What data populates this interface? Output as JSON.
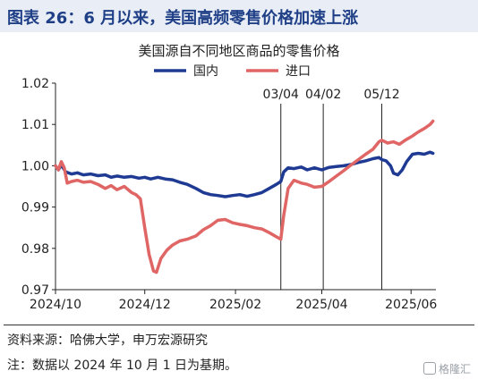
{
  "header": {
    "title": "图表 26：6 月以来，美国高频零售价格加速上涨"
  },
  "footer": {
    "source": "资料来源：哈佛大学，申万宏源研究",
    "note": "注：数据以 2024 年 10 月 1 日为基期。"
  },
  "watermark": {
    "text": "格隆汇"
  },
  "colors": {
    "domestic": "#1f3a93",
    "imported": "#e06666",
    "header_bg": "#e9eef6",
    "header_text": "#1f3f87"
  },
  "chart_data": {
    "type": "line",
    "title": "美国源自不同地区商品的零售价格",
    "xlabel": "",
    "ylabel": "",
    "xlim": [
      "2024-10-01",
      "2025-06-18"
    ],
    "ylim": [
      0.97,
      1.02
    ],
    "yticks": [
      0.97,
      0.98,
      0.99,
      1.0,
      1.01,
      1.02
    ],
    "ytick_labels": [
      "0.97",
      "0.98",
      "0.99",
      "1.00",
      "1.01",
      "1.02"
    ],
    "xticks": [
      "2024-10-01",
      "2024-12-01",
      "2025-02-01",
      "2025-04-01",
      "2025-06-01"
    ],
    "xtick_labels": [
      "2024/10",
      "2024/12",
      "2025/02",
      "2025/04",
      "2025/06"
    ],
    "legend": {
      "placement": "top-center"
    },
    "annotations": [
      {
        "date": "2025-03-04",
        "label": "03/04"
      },
      {
        "date": "2025-04-02",
        "label": "04/02"
      },
      {
        "date": "2025-05-12",
        "label": "05/12"
      }
    ],
    "series": [
      {
        "name": "国内",
        "color": "#1f3a93",
        "points": [
          [
            "2024-10-01",
            1.0
          ],
          [
            "2024-10-03",
            0.999
          ],
          [
            "2024-10-05",
            1.0002
          ],
          [
            "2024-10-08",
            0.9985
          ],
          [
            "2024-10-12",
            0.998
          ],
          [
            "2024-10-16",
            0.9983
          ],
          [
            "2024-10-20",
            0.9978
          ],
          [
            "2024-10-25",
            0.998
          ],
          [
            "2024-10-30",
            0.9976
          ],
          [
            "2024-11-04",
            0.9978
          ],
          [
            "2024-11-08",
            0.9972
          ],
          [
            "2024-11-12",
            0.9975
          ],
          [
            "2024-11-17",
            0.9972
          ],
          [
            "2024-11-22",
            0.9974
          ],
          [
            "2024-11-27",
            0.997
          ],
          [
            "2024-12-01",
            0.9972
          ],
          [
            "2024-12-05",
            0.9968
          ],
          [
            "2024-12-10",
            0.9972
          ],
          [
            "2024-12-15",
            0.9968
          ],
          [
            "2024-12-20",
            0.9966
          ],
          [
            "2024-12-25",
            0.996
          ],
          [
            "2024-12-30",
            0.9955
          ],
          [
            "2025-01-05",
            0.9945
          ],
          [
            "2025-01-10",
            0.9935
          ],
          [
            "2025-01-15",
            0.993
          ],
          [
            "2025-01-20",
            0.9928
          ],
          [
            "2025-01-25",
            0.9925
          ],
          [
            "2025-01-30",
            0.9928
          ],
          [
            "2025-02-04",
            0.993
          ],
          [
            "2025-02-09",
            0.9926
          ],
          [
            "2025-02-14",
            0.993
          ],
          [
            "2025-02-19",
            0.9935
          ],
          [
            "2025-02-24",
            0.9945
          ],
          [
            "2025-03-01",
            0.9955
          ],
          [
            "2025-03-04",
            0.9962
          ],
          [
            "2025-03-06",
            0.9985
          ],
          [
            "2025-03-09",
            0.9995
          ],
          [
            "2025-03-13",
            0.9993
          ],
          [
            "2025-03-18",
            0.9997
          ],
          [
            "2025-03-22",
            0.999
          ],
          [
            "2025-03-27",
            0.9995
          ],
          [
            "2025-04-01",
            0.999
          ],
          [
            "2025-04-06",
            0.9996
          ],
          [
            "2025-04-11",
            0.9998
          ],
          [
            "2025-04-16",
            1.0
          ],
          [
            "2025-04-21",
            1.0003
          ],
          [
            "2025-04-26",
            1.0008
          ],
          [
            "2025-05-01",
            1.0012
          ],
          [
            "2025-05-06",
            1.0017
          ],
          [
            "2025-05-10",
            1.002
          ],
          [
            "2025-05-12",
            1.0015
          ],
          [
            "2025-05-15",
            1.0012
          ],
          [
            "2025-05-18",
            1.0
          ],
          [
            "2025-05-20",
            0.9982
          ],
          [
            "2025-05-23",
            0.9978
          ],
          [
            "2025-05-26",
            0.999
          ],
          [
            "2025-05-29",
            1.001
          ],
          [
            "2025-06-02",
            1.0028
          ],
          [
            "2025-06-06",
            1.003
          ],
          [
            "2025-06-10",
            1.0028
          ],
          [
            "2025-06-14",
            1.0033
          ],
          [
            "2025-06-16",
            1.003
          ]
        ]
      },
      {
        "name": "进口",
        "color": "#e06666",
        "points": [
          [
            "2024-10-01",
            1.0
          ],
          [
            "2024-10-03",
            0.999
          ],
          [
            "2024-10-05",
            1.001
          ],
          [
            "2024-10-07",
            0.9995
          ],
          [
            "2024-10-09",
            0.9958
          ],
          [
            "2024-10-12",
            0.9962
          ],
          [
            "2024-10-16",
            0.9965
          ],
          [
            "2024-10-20",
            0.996
          ],
          [
            "2024-10-25",
            0.9962
          ],
          [
            "2024-10-30",
            0.9955
          ],
          [
            "2024-11-04",
            0.9945
          ],
          [
            "2024-11-08",
            0.9952
          ],
          [
            "2024-11-12",
            0.9942
          ],
          [
            "2024-11-17",
            0.995
          ],
          [
            "2024-11-22",
            0.9935
          ],
          [
            "2024-11-25",
            0.993
          ],
          [
            "2024-11-28",
            0.992
          ],
          [
            "2024-12-01",
            0.985
          ],
          [
            "2024-12-04",
            0.9785
          ],
          [
            "2024-12-07",
            0.9745
          ],
          [
            "2024-12-09",
            0.9742
          ],
          [
            "2024-12-12",
            0.9775
          ],
          [
            "2024-12-16",
            0.9795
          ],
          [
            "2024-12-20",
            0.9808
          ],
          [
            "2024-12-25",
            0.9818
          ],
          [
            "2024-12-30",
            0.9822
          ],
          [
            "2025-01-05",
            0.983
          ],
          [
            "2025-01-10",
            0.9845
          ],
          [
            "2025-01-15",
            0.9855
          ],
          [
            "2025-01-20",
            0.9868
          ],
          [
            "2025-01-25",
            0.987
          ],
          [
            "2025-01-30",
            0.9862
          ],
          [
            "2025-02-04",
            0.9858
          ],
          [
            "2025-02-09",
            0.9855
          ],
          [
            "2025-02-14",
            0.985
          ],
          [
            "2025-02-19",
            0.9847
          ],
          [
            "2025-02-24",
            0.9838
          ],
          [
            "2025-03-01",
            0.9828
          ],
          [
            "2025-03-04",
            0.9822
          ],
          [
            "2025-03-06",
            0.988
          ],
          [
            "2025-03-09",
            0.9945
          ],
          [
            "2025-03-13",
            0.9965
          ],
          [
            "2025-03-18",
            0.9958
          ],
          [
            "2025-03-22",
            0.9955
          ],
          [
            "2025-03-27",
            0.9948
          ],
          [
            "2025-04-01",
            0.995
          ],
          [
            "2025-04-06",
            0.9962
          ],
          [
            "2025-04-11",
            0.9975
          ],
          [
            "2025-04-16",
            0.9988
          ],
          [
            "2025-04-21",
            1.0002
          ],
          [
            "2025-04-26",
            1.0015
          ],
          [
            "2025-05-01",
            1.0028
          ],
          [
            "2025-05-06",
            1.004
          ],
          [
            "2025-05-10",
            1.0058
          ],
          [
            "2025-05-12",
            1.0062
          ],
          [
            "2025-05-16",
            1.0055
          ],
          [
            "2025-05-20",
            1.0058
          ],
          [
            "2025-05-24",
            1.0052
          ],
          [
            "2025-05-28",
            1.0062
          ],
          [
            "2025-06-02",
            1.0072
          ],
          [
            "2025-06-06",
            1.0082
          ],
          [
            "2025-06-10",
            1.009
          ],
          [
            "2025-06-14",
            1.01
          ],
          [
            "2025-06-16",
            1.0108
          ]
        ]
      }
    ]
  }
}
